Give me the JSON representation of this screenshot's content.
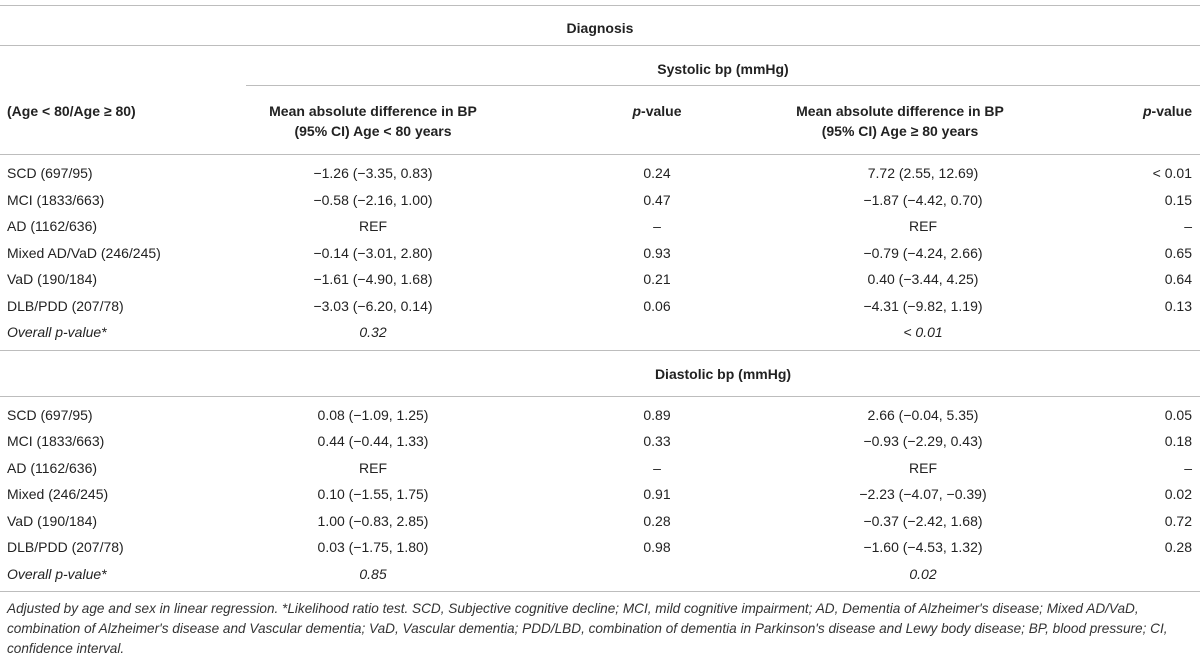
{
  "header": {
    "diagnosis": "Diagnosis",
    "systolic": "Systolic bp (mmHg)",
    "row_label": "(Age < 80/Age ≥ 80)",
    "col1_line1": "Mean absolute difference in BP",
    "col1_line2": "(95% CI) Age < 80 years",
    "col2": "p-value",
    "col3_line1": "Mean absolute difference in BP",
    "col3_line2": "(95% CI) Age ≥ 80 years",
    "col4": "p-value",
    "pval_p": "p",
    "pval_rest": "-value"
  },
  "systolic_rows": [
    {
      "label": "SCD (697/95)",
      "young": "−1.26 (−3.35, 0.83)",
      "p_young": "0.24",
      "old": "7.72 (2.55, 12.69)",
      "p_old": "< 0.01"
    },
    {
      "label": "MCI (1833/663)",
      "young": "−0.58 (−2.16, 1.00)",
      "p_young": "0.47",
      "old": "−1.87 (−4.42, 0.70)",
      "p_old": "0.15"
    },
    {
      "label": "AD (1162/636)",
      "young": "REF",
      "p_young": "–",
      "old": "REF",
      "p_old": "–"
    },
    {
      "label": "Mixed AD/VaD (246/245)",
      "young": "−0.14 (−3.01, 2.80)",
      "p_young": "0.93",
      "old": "−0.79 (−4.24, 2.66)",
      "p_old": "0.65"
    },
    {
      "label": "VaD (190/184)",
      "young": "−1.61 (−4.90, 1.68)",
      "p_young": "0.21",
      "old": "0.40 (−3.44, 4.25)",
      "p_old": "0.64"
    },
    {
      "label": "DLB/PDD (207/78)",
      "young": "−3.03 (−6.20, 0.14)",
      "p_young": "0.06",
      "old": "−4.31 (−9.82, 1.19)",
      "p_old": "0.13"
    }
  ],
  "systolic_overall": {
    "label": "Overall p-value*",
    "young": "0.32",
    "old": "< 0.01"
  },
  "diastolic_title": "Diastolic bp (mmHg)",
  "diastolic_rows": [
    {
      "label": "SCD (697/95)",
      "young": "0.08 (−1.09, 1.25)",
      "p_young": "0.89",
      "old": "2.66 (−0.04, 5.35)",
      "p_old": "0.05"
    },
    {
      "label": "MCI (1833/663)",
      "young": "0.44 (−0.44, 1.33)",
      "p_young": "0.33",
      "old": "−0.93 (−2.29, 0.43)",
      "p_old": "0.18"
    },
    {
      "label": "AD (1162/636)",
      "young": "REF",
      "p_young": "–",
      "old": "REF",
      "p_old": "–"
    },
    {
      "label": "Mixed (246/245)",
      "young": "0.10 (−1.55, 1.75)",
      "p_young": "0.91",
      "old": "−2.23 (−4.07, −0.39)",
      "p_old": "0.02"
    },
    {
      "label": "VaD (190/184)",
      "young": "1.00 (−0.83, 2.85)",
      "p_young": "0.28",
      "old": "−0.37 (−2.42, 1.68)",
      "p_old": "0.72"
    },
    {
      "label": "DLB/PDD (207/78)",
      "young": "0.03 (−1.75, 1.80)",
      "p_young": "0.98",
      "old": "−1.60 (−4.53, 1.32)",
      "p_old": "0.28"
    }
  ],
  "diastolic_overall": {
    "label": "Overall p-value*",
    "young": "0.85",
    "old": "0.02"
  },
  "footnote": "Adjusted by age and sex in linear regression. *Likelihood ratio test. SCD, Subjective cognitive decline; MCI, mild cognitive impairment; AD, Dementia of Alzheimer's disease; Mixed AD/VaD, combination of Alzheimer's disease and Vascular dementia; VaD, Vascular dementia; PDD/LBD, combination of dementia in Parkinson's disease and Lewy body disease; BP, blood pressure; CI, confidence interval."
}
